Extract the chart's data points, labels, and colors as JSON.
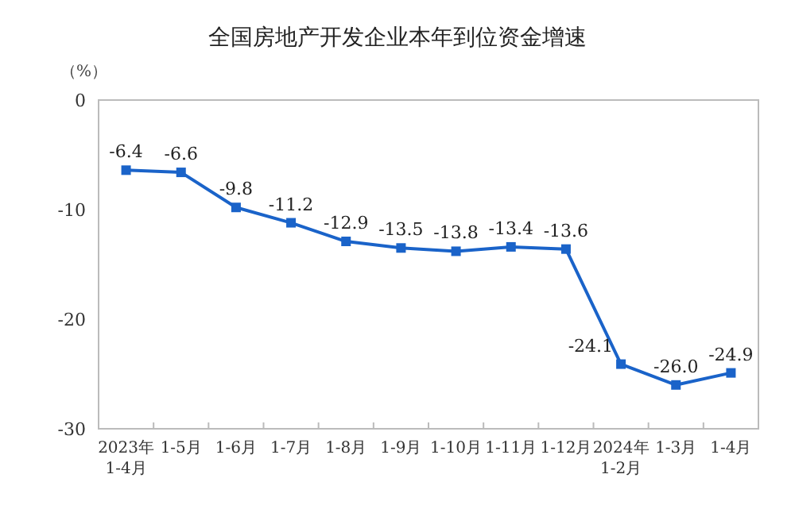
{
  "chart_data": {
    "type": "line",
    "title": "全国房地产开发企业本年到位资金增速",
    "ylabel": "（%）",
    "categories": [
      "2023年\n1-4月",
      "1-5月",
      "1-6月",
      "1-7月",
      "1-8月",
      "1-9月",
      "1-10月",
      "1-11月",
      "1-12月",
      "2024年\n1-2月",
      "1-3月",
      "1-4月"
    ],
    "series": [
      {
        "color": "#1a63c9",
        "values": [
          -6.4,
          -6.6,
          -9.8,
          -11.2,
          -12.9,
          -13.5,
          -13.8,
          -13.4,
          -13.6,
          -24.1,
          -26.0,
          -24.9
        ],
        "value_labels": [
          "-6.4",
          "-6.6",
          "-9.8",
          "-11.2",
          "-12.9",
          "-13.5",
          "-13.8",
          "-13.4",
          "-13.6",
          "-24.1",
          "-26.0",
          "-24.9"
        ]
      }
    ],
    "ylim": [
      -30,
      0
    ],
    "yticks": [
      0,
      -10,
      -20,
      -30
    ],
    "marker": "square",
    "grid": false
  }
}
